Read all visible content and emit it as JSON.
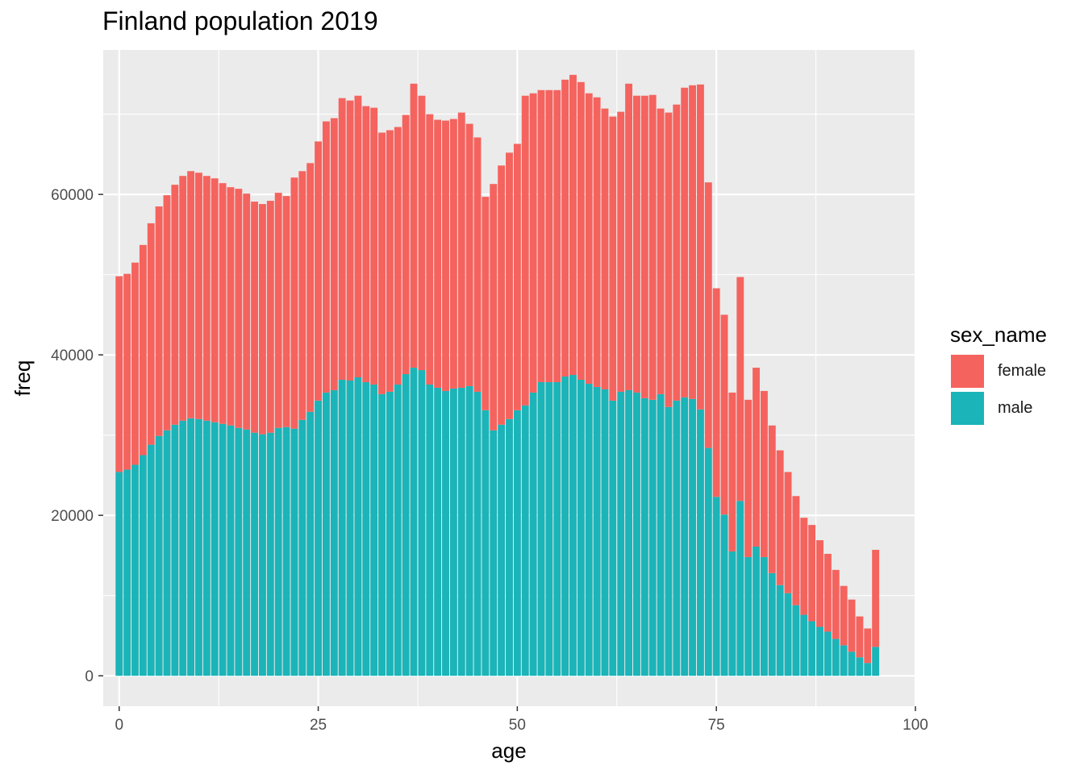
{
  "chart_data": {
    "type": "bar",
    "stacked": true,
    "title": "Finland population 2019",
    "xlabel": "age",
    "ylabel": "freq",
    "xlim": [
      -2,
      100
    ],
    "ylim": [
      -3800,
      78000
    ],
    "x_ticks": [
      0,
      25,
      50,
      75,
      100
    ],
    "x_tick_labels": [
      "0",
      "25",
      "50",
      "75",
      "100"
    ],
    "y_ticks": [
      0,
      20000,
      40000,
      60000
    ],
    "y_tick_labels": [
      "0",
      "20000",
      "40000",
      "60000"
    ],
    "grid": true,
    "legend_title": "sex_name",
    "legend_position": "right",
    "x": [
      0,
      1,
      2,
      3,
      4,
      5,
      6,
      7,
      8,
      9,
      10,
      11,
      12,
      13,
      14,
      15,
      16,
      17,
      18,
      19,
      20,
      21,
      22,
      23,
      24,
      25,
      26,
      27,
      28,
      29,
      30,
      31,
      32,
      33,
      34,
      35,
      36,
      37,
      38,
      39,
      40,
      41,
      42,
      43,
      44,
      45,
      46,
      47,
      48,
      49,
      50,
      51,
      52,
      53,
      54,
      55,
      56,
      57,
      58,
      59,
      60,
      61,
      62,
      63,
      64,
      65,
      66,
      67,
      68,
      69,
      70,
      71,
      72,
      73,
      74,
      75,
      76,
      77,
      78,
      79,
      80,
      81,
      82,
      83,
      84,
      85,
      86,
      87,
      88,
      89,
      90,
      91,
      92,
      93,
      94,
      95
    ],
    "series": [
      {
        "name": "male",
        "color": "#1BB4B8",
        "values": [
          25400,
          25700,
          26300,
          27500,
          28800,
          29900,
          30600,
          31300,
          31800,
          32100,
          32000,
          31800,
          31600,
          31400,
          31200,
          30900,
          30700,
          30300,
          30100,
          30300,
          30900,
          31000,
          30800,
          31900,
          32900,
          34300,
          35300,
          35600,
          36900,
          36800,
          37200,
          36600,
          36300,
          35100,
          35400,
          36300,
          37600,
          38400,
          38100,
          36300,
          35900,
          35500,
          35800,
          35900,
          36100,
          35400,
          33100,
          30600,
          31300,
          32000,
          33100,
          33700,
          35300,
          36600,
          36600,
          36600,
          37300,
          37500,
          36900,
          36400,
          36000,
          35700,
          34300,
          35400,
          35600,
          35300,
          34600,
          34400,
          35100,
          33500,
          34300,
          34700,
          34500,
          33200,
          28400,
          22300,
          20100,
          15500,
          21800,
          14800,
          16100,
          14800,
          12800,
          11300,
          10300,
          8800,
          7600,
          6800,
          6100,
          5500,
          4600,
          3800,
          3000,
          2300,
          1600,
          3600
        ]
      },
      {
        "name": "female",
        "color": "#F5635E",
        "values": [
          24400,
          24400,
          25200,
          26200,
          27600,
          28600,
          29300,
          29900,
          30500,
          30800,
          30700,
          30500,
          30400,
          30000,
          29700,
          29800,
          29400,
          28800,
          28700,
          28900,
          29300,
          28800,
          31300,
          31000,
          31000,
          32300,
          33800,
          33900,
          35100,
          34900,
          35100,
          34400,
          34500,
          32600,
          32600,
          32100,
          32300,
          35400,
          34200,
          33700,
          33400,
          33700,
          33600,
          34300,
          32700,
          31700,
          26600,
          30700,
          32300,
          33200,
          33200,
          38600,
          37300,
          36400,
          36400,
          36400,
          37000,
          37400,
          37100,
          36200,
          36100,
          35000,
          35400,
          34900,
          38200,
          37000,
          37700,
          38000,
          35600,
          36700,
          36900,
          38600,
          39100,
          40500,
          33100,
          26000,
          24900,
          19800,
          27900,
          19600,
          22300,
          20700,
          18400,
          16800,
          15100,
          13600,
          12100,
          12000,
          10800,
          9700,
          8600,
          7400,
          6500,
          5100,
          4300,
          12100
        ]
      }
    ]
  }
}
